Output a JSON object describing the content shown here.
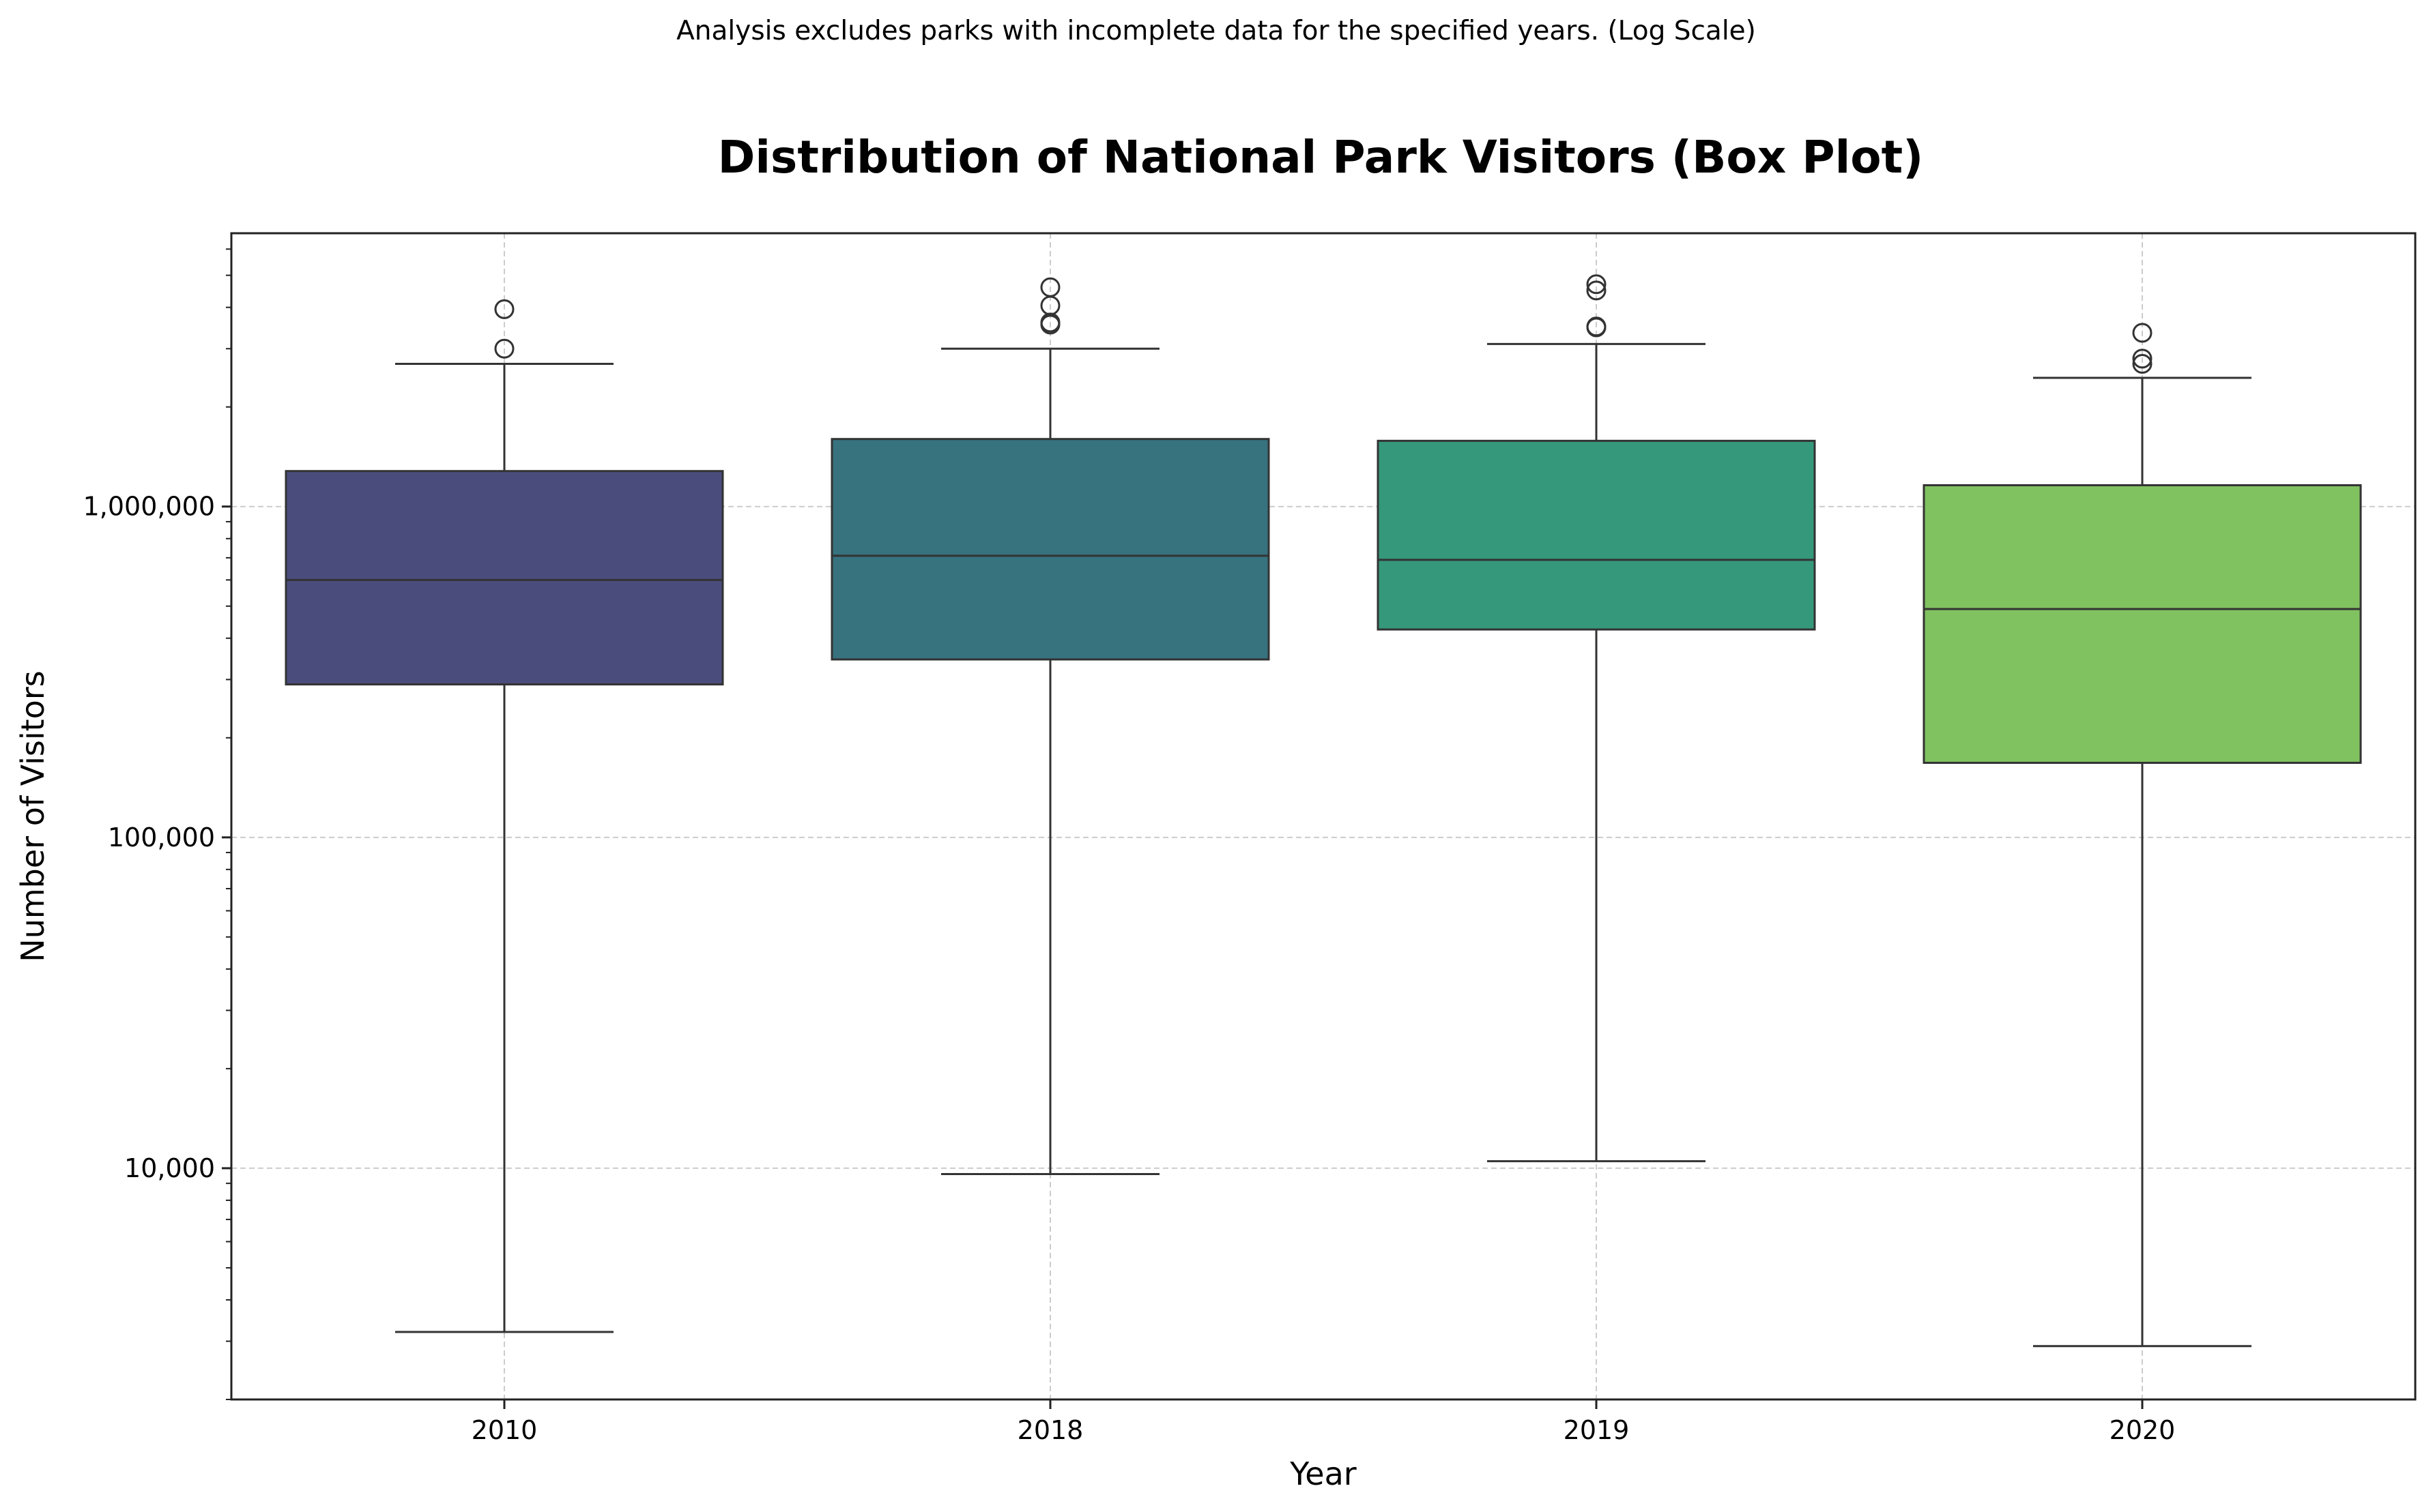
{
  "chart_data": {
    "type": "box",
    "subtitle": "Analysis excludes parks with incomplete data for the specified years. (Log Scale)",
    "title": "Distribution of National Park Visitors (Box Plot)",
    "xlabel": "Year",
    "ylabel": "Number of Visitors",
    "yscale": "log",
    "ylim": [
      2000,
      6700000
    ],
    "grid": true,
    "y_ticks": [
      {
        "value": 10000,
        "label": "10,000"
      },
      {
        "value": 100000,
        "label": "100,000"
      },
      {
        "value": 1000000,
        "label": "1,000,000"
      }
    ],
    "categories": [
      "2010",
      "2018",
      "2019",
      "2020"
    ],
    "boxes": [
      {
        "category": "2010",
        "color": "#4a4d7c",
        "whisker_low": 3200,
        "q1": 290000,
        "median": 600000,
        "q3": 1280000,
        "whisker_high": 2700000,
        "outliers": [
          3000000,
          3950000
        ]
      },
      {
        "category": "2018",
        "color": "#37727f",
        "whisker_low": 9600,
        "q1": 345000,
        "median": 710000,
        "q3": 1600000,
        "whisker_high": 3000000,
        "outliers": [
          3550000,
          3600000,
          4050000,
          4600000
        ]
      },
      {
        "category": "2019",
        "color": "#35987b",
        "whisker_low": 10500,
        "q1": 425000,
        "median": 690000,
        "q3": 1580000,
        "whisker_high": 3100000,
        "outliers": [
          3480000,
          3500000,
          4500000,
          4700000
        ]
      },
      {
        "category": "2020",
        "color": "#80c160",
        "whisker_low": 2900,
        "q1": 168000,
        "median": 490000,
        "q3": 1160000,
        "whisker_high": 2450000,
        "outliers": [
          2700000,
          2800000,
          3350000
        ]
      }
    ]
  }
}
